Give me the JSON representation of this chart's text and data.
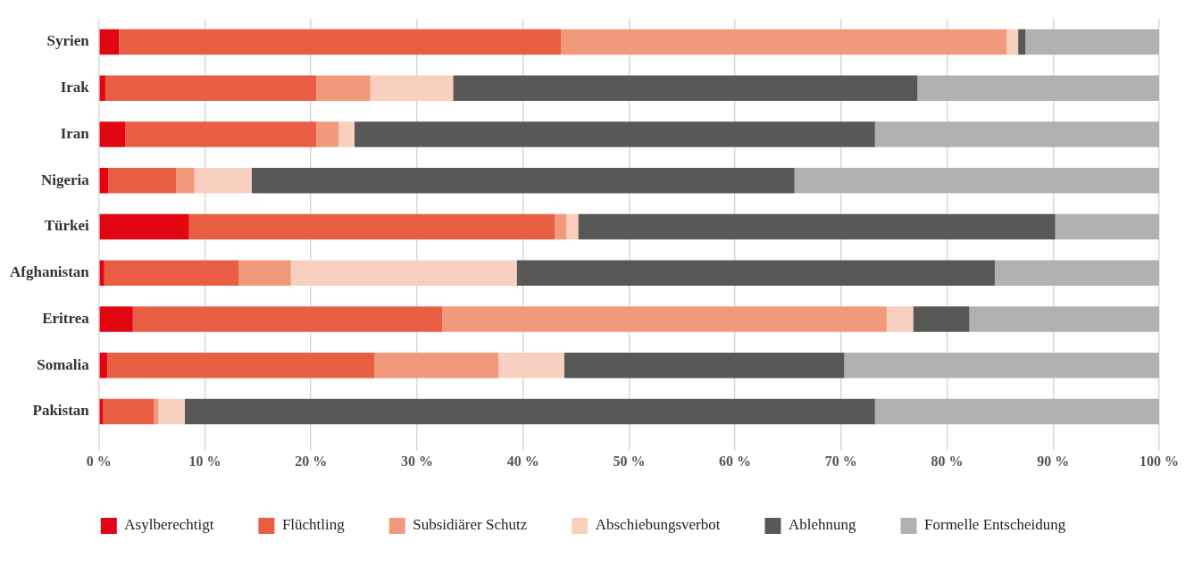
{
  "chart_data": {
    "type": "bar",
    "orientation": "horizontal",
    "stacked": true,
    "legend": "bottom",
    "grid": "x",
    "categories": [
      "Syrien",
      "Irak",
      "Iran",
      "Nigeria",
      "Türkei",
      "Afghanistan",
      "Eritrea",
      "Somalia",
      "Pakistan"
    ],
    "xlim": [
      0,
      100
    ],
    "xticks": [
      {
        "value": 0,
        "label": "0 %"
      },
      {
        "value": 10,
        "label": "10 %"
      },
      {
        "value": 20,
        "label": "20 %"
      },
      {
        "value": 30,
        "label": "30 %"
      },
      {
        "value": 40,
        "label": "40 %"
      },
      {
        "value": 50,
        "label": "50 %"
      },
      {
        "value": 60,
        "label": "60 %"
      },
      {
        "value": 70,
        "label": "70 %"
      },
      {
        "value": 80,
        "label": "80 %"
      },
      {
        "value": 90,
        "label": "90 %"
      },
      {
        "value": 100,
        "label": "100 %"
      }
    ],
    "series": [
      {
        "name": "Asylberechtigt",
        "color": "#e20613",
        "values": [
          1.9,
          0.6,
          2.5,
          0.9,
          8.5,
          0.5,
          3.2,
          0.8,
          0.4
        ]
      },
      {
        "name": "Flüchtling",
        "color": "#e95e42",
        "values": [
          41.7,
          19.9,
          18.0,
          6.4,
          34.5,
          12.7,
          29.2,
          25.2,
          4.8
        ]
      },
      {
        "name": "Subsidiärer Schutz",
        "color": "#f1997b",
        "values": [
          42.0,
          5.1,
          2.1,
          1.7,
          1.1,
          4.9,
          41.9,
          11.7,
          0.4
        ]
      },
      {
        "name": "Abschiebungsverbot",
        "color": "#f9cfbf",
        "values": [
          1.1,
          7.8,
          1.5,
          5.4,
          1.1,
          21.3,
          2.5,
          6.2,
          2.5
        ]
      },
      {
        "name": "Ablehnung",
        "color": "#585856",
        "values": [
          0.7,
          43.8,
          49.1,
          51.2,
          45.0,
          45.1,
          5.3,
          26.4,
          65.1
        ]
      },
      {
        "name": "Formelle Entscheidung",
        "color": "#b1b1b1",
        "values": [
          12.6,
          22.8,
          26.8,
          34.4,
          9.8,
          15.5,
          17.9,
          29.7,
          26.8
        ]
      }
    ]
  }
}
